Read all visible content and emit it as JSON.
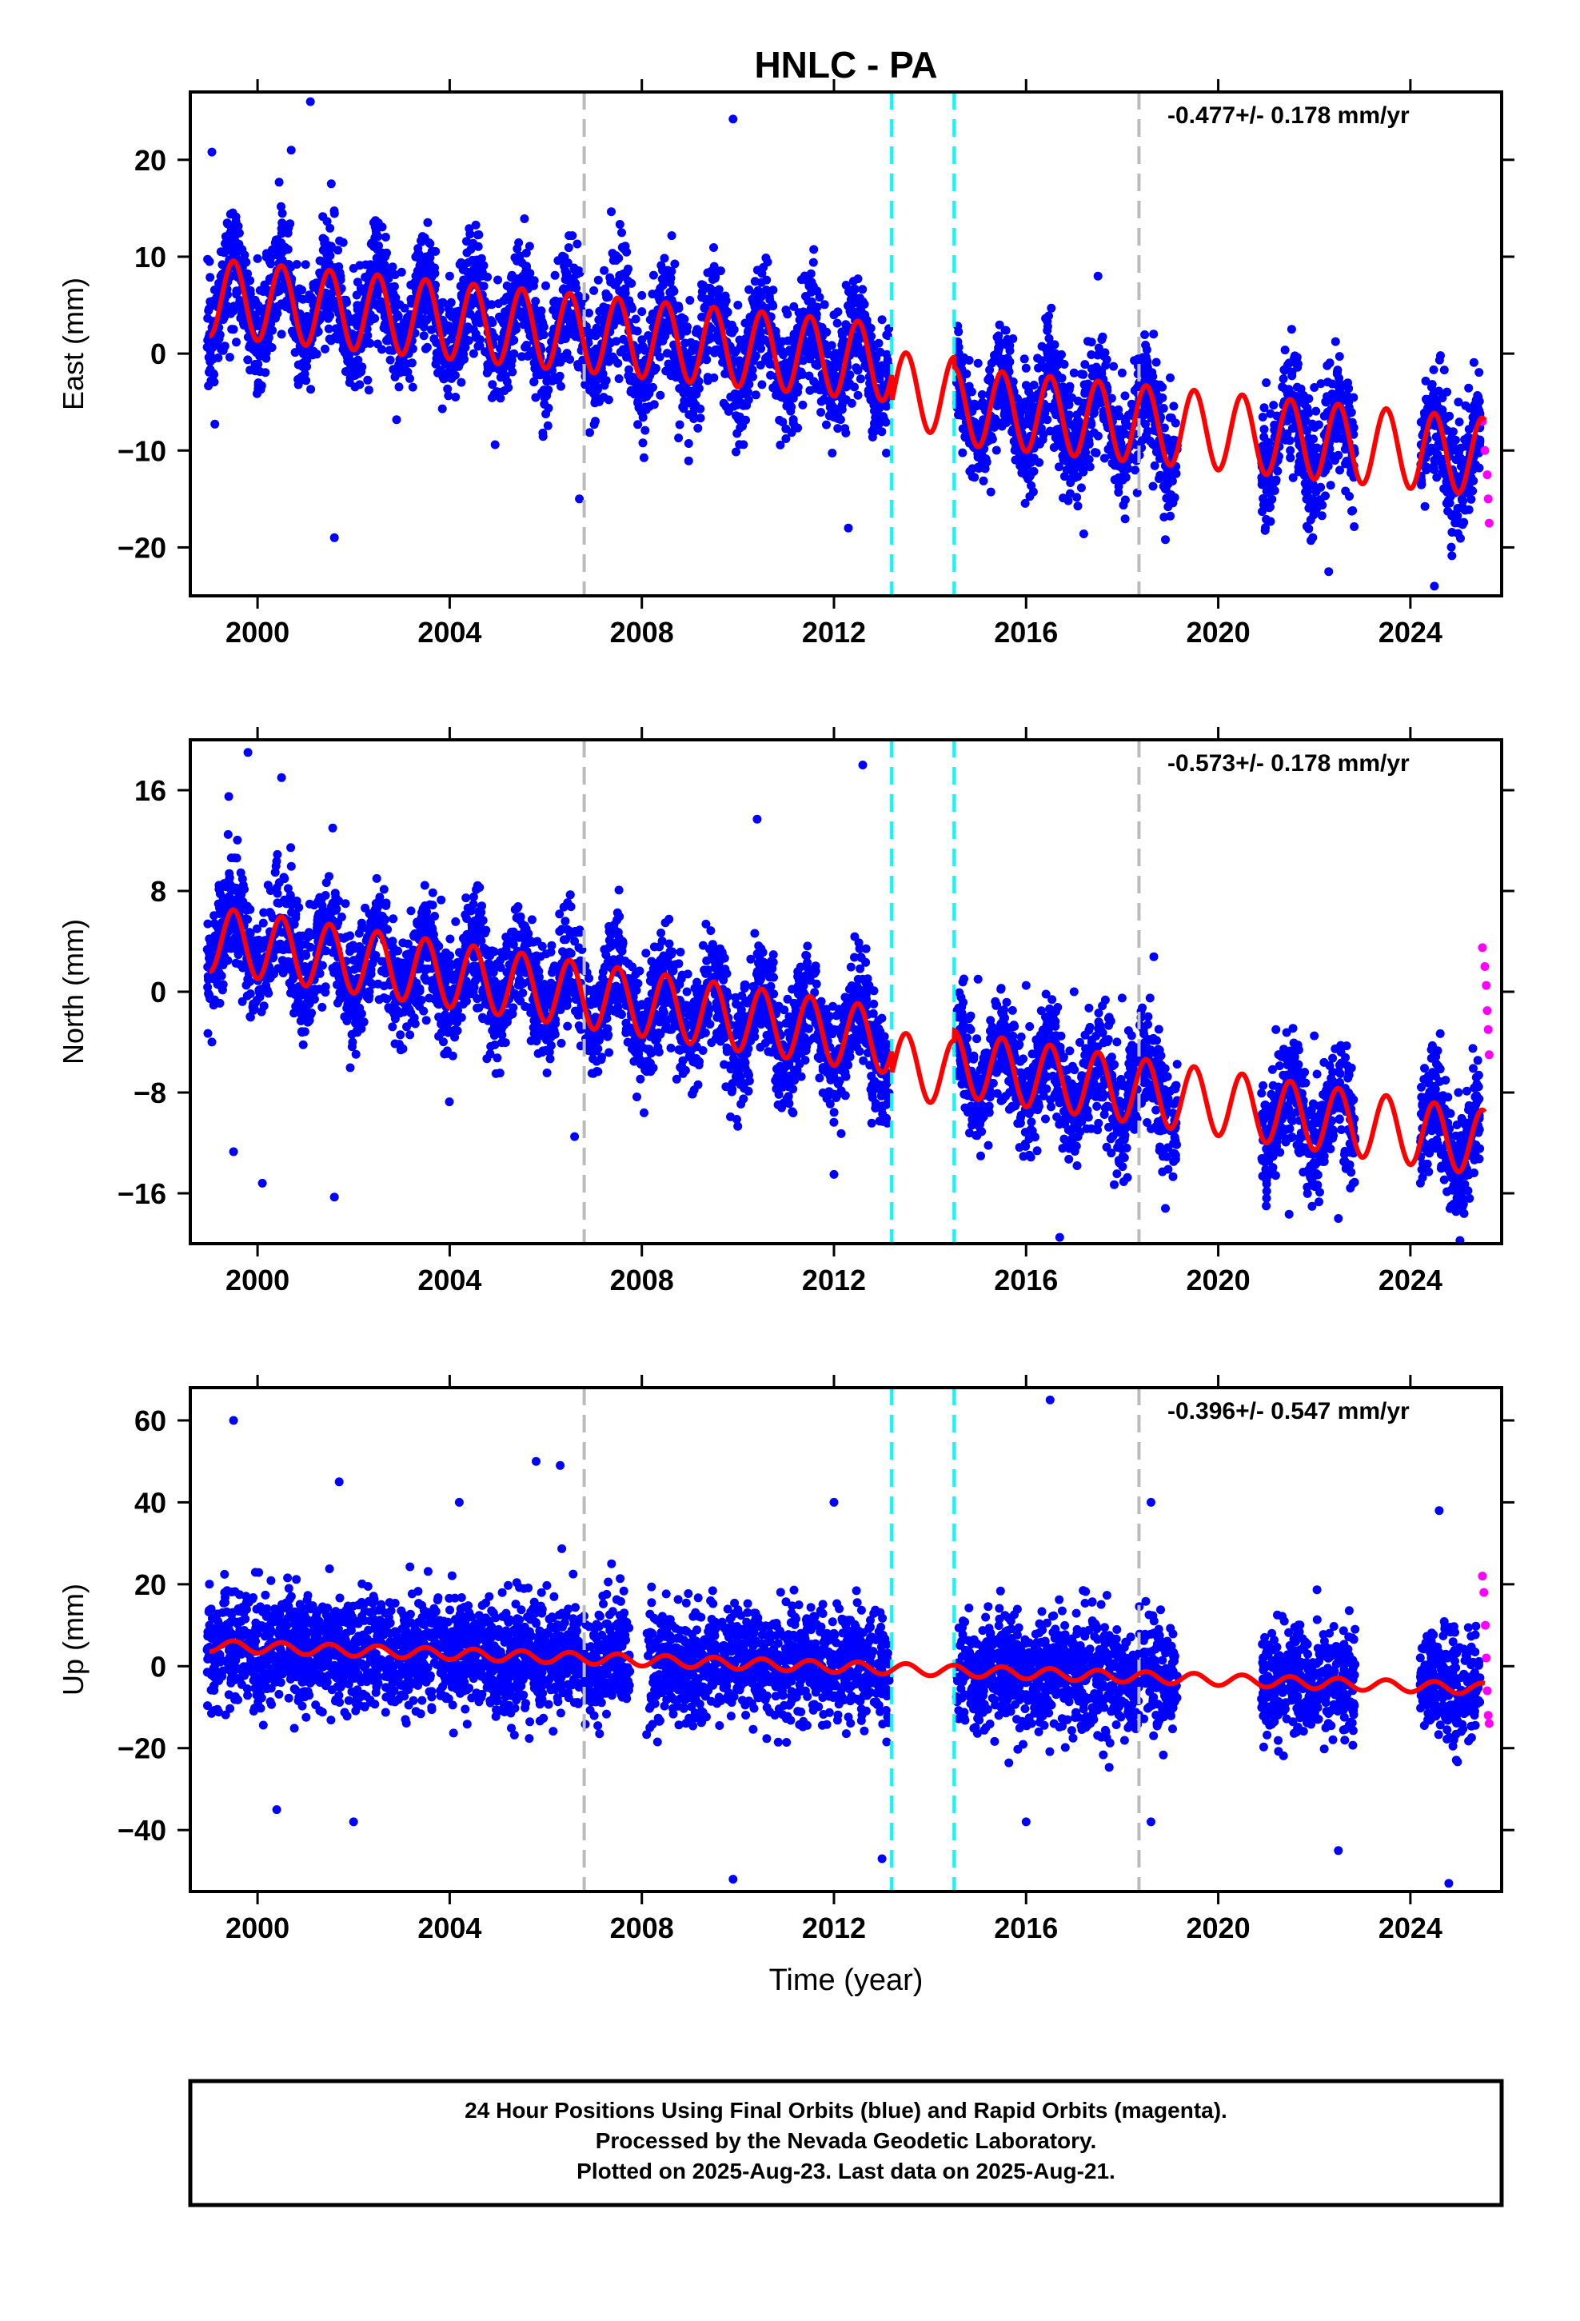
{
  "title": "HNLC - PA",
  "xlabel": "Time (year)",
  "footer": {
    "line1": "24 Hour Positions Using Final Orbits (blue) and Rapid Orbits (magenta).",
    "line2": "Processed by the Nevada Geodetic Laboratory.",
    "line3": "Plotted on 2025-Aug-23. Last data on 2025-Aug-21."
  },
  "colors": {
    "final_orbits": "#0000ff",
    "rapid_orbits": "#ff00ff",
    "model": "#ff0000",
    "event_gray": "#bbbbbb",
    "event_cyan": "#00ffff"
  },
  "chart_data": [
    {
      "type": "scatter",
      "id": "east",
      "ylabel": "East (mm)",
      "rate": "-0.477+/- 0.178 mm/yr",
      "xlim": [
        1998.6,
        2025.9
      ],
      "ylim": [
        -25,
        27
      ],
      "xticks": [
        2000,
        2004,
        2008,
        2012,
        2016,
        2020,
        2024
      ],
      "yticks": [
        -20,
        -10,
        0,
        10,
        20
      ],
      "grid": false,
      "event_lines": [
        {
          "x": 2006.8,
          "color": "gray"
        },
        {
          "x": 2013.2,
          "color": "cyan"
        },
        {
          "x": 2014.5,
          "color": "cyan"
        },
        {
          "x": 2018.35,
          "color": "gray"
        }
      ],
      "data_spans": [
        [
          1998.95,
          2013.15
        ],
        [
          2014.55,
          2019.15
        ],
        [
          2020.9,
          2022.85
        ],
        [
          2024.2,
          2025.45
        ]
      ],
      "series": [
        {
          "role": "final",
          "points": [
            [
              1999.0,
              9.5
            ],
            [
              1999.5,
              2.5
            ],
            [
              2000.0,
              9.8
            ],
            [
              2000.5,
              2.0
            ],
            [
              2001.0,
              9.2
            ],
            [
              2001.5,
              1.5
            ],
            [
              2002.0,
              8.8
            ],
            [
              2002.5,
              1.0
            ],
            [
              2003.0,
              8.4
            ],
            [
              2003.5,
              0.5
            ],
            [
              2004.0,
              8.0
            ],
            [
              2004.5,
              0.0
            ],
            [
              2005.0,
              7.6
            ],
            [
              2005.5,
              -0.3
            ],
            [
              2006.0,
              7.0
            ],
            [
              2006.5,
              -0.6
            ],
            [
              2007.0,
              6.5
            ],
            [
              2007.5,
              -1.0
            ],
            [
              2008.0,
              6.0
            ],
            [
              2008.5,
              -1.8
            ],
            [
              2009.0,
              5.5
            ],
            [
              2009.5,
              -2.5
            ],
            [
              2010.0,
              5.0
            ],
            [
              2010.5,
              -3.2
            ],
            [
              2011.0,
              4.5
            ],
            [
              2011.5,
              -3.8
            ],
            [
              2012.0,
              4.0
            ],
            [
              2012.5,
              -4.3
            ],
            [
              2013.0,
              3.5
            ],
            [
              2014.7,
              -5.5
            ],
            [
              2015.0,
              -1.0
            ],
            [
              2015.5,
              -7.5
            ],
            [
              2016.0,
              -1.5
            ],
            [
              2016.5,
              -8.0
            ],
            [
              2017.0,
              -2.0
            ],
            [
              2017.5,
              -8.5
            ],
            [
              2018.0,
              -2.0
            ],
            [
              2018.5,
              -8.5
            ],
            [
              2019.0,
              -2.5
            ],
            [
              2021.0,
              -3.0
            ],
            [
              2021.5,
              -10.0
            ],
            [
              2022.0,
              -3.5
            ],
            [
              2022.5,
              -10.5
            ],
            [
              2024.5,
              -11.0
            ],
            [
              2025.0,
              -5.0
            ],
            [
              2025.3,
              -12.0
            ]
          ]
        },
        {
          "role": "rapid",
          "points": [
            [
              2025.5,
              -7.0
            ],
            [
              2025.55,
              -10.0
            ],
            [
              2025.6,
              -12.5
            ],
            [
              2025.62,
              -15.0
            ],
            [
              2025.64,
              -17.5
            ]
          ]
        },
        {
          "role": "outlier",
          "points": [
            [
              2001.1,
              26.0
            ],
            [
              1999.05,
              20.8
            ],
            [
              2000.7,
              21.0
            ],
            [
              2009.9,
              24.2
            ],
            [
              2001.6,
              -19.0
            ],
            [
              2006.7,
              -15.0
            ],
            [
              2012.3,
              -18.0
            ],
            [
              2022.3,
              -22.5
            ],
            [
              2024.5,
              -24.0
            ],
            [
              2017.2,
              -18.6
            ],
            [
              2018.9,
              -19.2
            ]
          ]
        }
      ],
      "model": {
        "intercept_year": 1999.0,
        "intercept": 5.8,
        "rate": -0.477,
        "amplitude": 4.0,
        "offsets": [
          {
            "x": 2013.2,
            "dy": -2.8
          },
          {
            "x": 2014.5,
            "dy": -1.0
          }
        ]
      }
    },
    {
      "type": "scatter",
      "id": "north",
      "ylabel": "North (mm)",
      "rate": "-0.573+/- 0.178 mm/yr",
      "xlim": [
        1998.6,
        2025.9
      ],
      "ylim": [
        -20,
        20
      ],
      "xticks": [
        2000,
        2004,
        2008,
        2012,
        2016,
        2020,
        2024
      ],
      "yticks": [
        -16,
        -8,
        0,
        8,
        16
      ],
      "grid": false,
      "event_lines": [
        {
          "x": 2006.8,
          "color": "gray"
        },
        {
          "x": 2013.2,
          "color": "cyan"
        },
        {
          "x": 2014.5,
          "color": "cyan"
        },
        {
          "x": 2018.35,
          "color": "gray"
        }
      ],
      "data_spans": [
        [
          1998.95,
          2013.15
        ],
        [
          2014.55,
          2019.15
        ],
        [
          2020.9,
          2022.85
        ],
        [
          2024.2,
          2025.45
        ]
      ],
      "series": [
        {
          "role": "final",
          "points": [
            [
              1999.2,
              4.5
            ],
            [
              1999.6,
              8.0
            ],
            [
              2000.0,
              3.5
            ],
            [
              2000.6,
              7.0
            ],
            [
              2001.0,
              3.0
            ],
            [
              2001.6,
              6.5
            ],
            [
              2002.0,
              2.5
            ],
            [
              2002.6,
              6.0
            ],
            [
              2003.0,
              2.0
            ],
            [
              2003.6,
              5.5
            ],
            [
              2004.0,
              1.5
            ],
            [
              2004.6,
              5.0
            ],
            [
              2005.0,
              0.5
            ],
            [
              2005.6,
              4.5
            ],
            [
              2006.0,
              0.0
            ],
            [
              2006.6,
              4.0
            ],
            [
              2007.0,
              -0.5
            ],
            [
              2007.6,
              4.0
            ],
            [
              2008.0,
              -1.0
            ],
            [
              2008.6,
              3.0
            ],
            [
              2009.0,
              -1.5
            ],
            [
              2009.6,
              2.5
            ],
            [
              2010.0,
              -2.0
            ],
            [
              2010.6,
              2.0
            ],
            [
              2011.0,
              -2.5
            ],
            [
              2011.6,
              1.5
            ],
            [
              2012.0,
              -3.0
            ],
            [
              2012.6,
              1.0
            ],
            [
              2014.7,
              -3.0
            ],
            [
              2015.0,
              1.0
            ],
            [
              2015.5,
              -4.0
            ],
            [
              2016.0,
              0.5
            ],
            [
              2016.5,
              -4.5
            ],
            [
              2017.0,
              0.0
            ],
            [
              2017.5,
              -5.0
            ],
            [
              2018.0,
              -0.5
            ],
            [
              2018.5,
              -4.0
            ],
            [
              2021.2,
              -3.0
            ],
            [
              2021.6,
              -7.0
            ],
            [
              2022.0,
              -3.5
            ],
            [
              2022.5,
              -7.5
            ],
            [
              2024.5,
              -5.0
            ],
            [
              2025.0,
              -8.0
            ],
            [
              2025.3,
              -4.5
            ]
          ]
        },
        {
          "role": "rapid",
          "points": [
            [
              2025.5,
              3.5
            ],
            [
              2025.55,
              2.0
            ],
            [
              2025.58,
              0.5
            ],
            [
              2025.6,
              -1.5
            ],
            [
              2025.62,
              -3.0
            ],
            [
              2025.64,
              -5.0
            ]
          ]
        },
        {
          "role": "outlier",
          "points": [
            [
              1999.8,
              19.0
            ],
            [
              2000.5,
              17.0
            ],
            [
              1999.4,
              15.5
            ],
            [
              2012.6,
              18.0
            ],
            [
              2010.4,
              13.7
            ],
            [
              1999.5,
              -12.7
            ],
            [
              2000.1,
              -15.2
            ],
            [
              2001.6,
              -16.3
            ],
            [
              2006.6,
              -11.5
            ],
            [
              2012.0,
              -14.5
            ],
            [
              2016.7,
              -19.5
            ],
            [
              2018.9,
              -17.2
            ],
            [
              2021.0,
              -17.0
            ],
            [
              2022.5,
              -18.0
            ],
            [
              2025.2,
              -15.8
            ]
          ]
        }
      ],
      "model": {
        "intercept_year": 1999.0,
        "intercept": 4.2,
        "rate": -0.573,
        "amplitude": 2.6,
        "offsets": [
          {
            "x": 2013.2,
            "dy": -1.8
          },
          {
            "x": 2014.5,
            "dy": 0.8
          }
        ]
      }
    },
    {
      "type": "scatter",
      "id": "up",
      "ylabel": "Up (mm)",
      "rate": "-0.396+/- 0.547 mm/yr",
      "xlim": [
        1998.6,
        2025.9
      ],
      "ylim": [
        -55,
        68
      ],
      "xticks": [
        2000,
        2004,
        2008,
        2012,
        2016,
        2020,
        2024
      ],
      "yticks": [
        -40,
        -20,
        0,
        20,
        40,
        60
      ],
      "grid": false,
      "event_lines": [
        {
          "x": 2006.8,
          "color": "gray"
        },
        {
          "x": 2013.2,
          "color": "cyan"
        },
        {
          "x": 2014.5,
          "color": "cyan"
        },
        {
          "x": 2018.35,
          "color": "gray"
        }
      ],
      "data_spans": [
        [
          1998.95,
          2007.75
        ],
        [
          2008.1,
          2013.15
        ],
        [
          2014.55,
          2019.15
        ],
        [
          2020.9,
          2022.85
        ],
        [
          2024.2,
          2025.45
        ]
      ],
      "series": [
        {
          "role": "final",
          "points": [
            [
              1999.0,
              10.0
            ],
            [
              2000.0,
              8.0
            ],
            [
              2001.0,
              7.0
            ],
            [
              2002.0,
              5.0
            ],
            [
              2003.0,
              3.0
            ],
            [
              2004.0,
              0.0
            ],
            [
              2005.0,
              3.0
            ],
            [
              2006.0,
              4.0
            ],
            [
              2007.0,
              3.0
            ],
            [
              2008.5,
              1.0
            ],
            [
              2009.5,
              0.0
            ],
            [
              2010.5,
              0.0
            ],
            [
              2011.5,
              -1.0
            ],
            [
              2012.5,
              -1.0
            ],
            [
              2015.0,
              -3.0
            ],
            [
              2016.0,
              -4.0
            ],
            [
              2017.0,
              -4.0
            ],
            [
              2018.0,
              -5.0
            ],
            [
              2019.0,
              -5.0
            ],
            [
              2021.5,
              -5.0
            ],
            [
              2022.5,
              -6.0
            ],
            [
              2024.5,
              -5.0
            ],
            [
              2025.2,
              -6.0
            ]
          ]
        },
        {
          "role": "rapid",
          "points": [
            [
              2025.5,
              22.0
            ],
            [
              2025.53,
              18.0
            ],
            [
              2025.56,
              10.0
            ],
            [
              2025.58,
              2.0
            ],
            [
              2025.6,
              -6.0
            ],
            [
              2025.62,
              -12.0
            ],
            [
              2025.64,
              -14.0
            ]
          ]
        },
        {
          "role": "outlier",
          "points": [
            [
              1999.5,
              60.0
            ],
            [
              2005.8,
              50.0
            ],
            [
              2006.3,
              49.0
            ],
            [
              2016.5,
              65.0
            ],
            [
              2018.6,
              40.0
            ],
            [
              2004.2,
              40.0
            ],
            [
              2001.7,
              45.0
            ],
            [
              2012.0,
              40.0
            ],
            [
              2024.6,
              38.0
            ],
            [
              2000.4,
              -35.0
            ],
            [
              2002.0,
              -38.0
            ],
            [
              2009.9,
              -52.0
            ],
            [
              2013.0,
              -47.0
            ],
            [
              2022.5,
              -45.0
            ],
            [
              2024.8,
              -53.0
            ],
            [
              2016.0,
              -38.0
            ],
            [
              2018.6,
              -38.0
            ]
          ]
        }
      ],
      "model": {
        "intercept_year": 1999.0,
        "intercept": 5.0,
        "rate": -0.396,
        "amplitude": 1.4,
        "offsets": [
          {
            "x": 2013.2,
            "dy": 0.0
          },
          {
            "x": 2014.5,
            "dy": 0.0
          }
        ]
      }
    }
  ]
}
